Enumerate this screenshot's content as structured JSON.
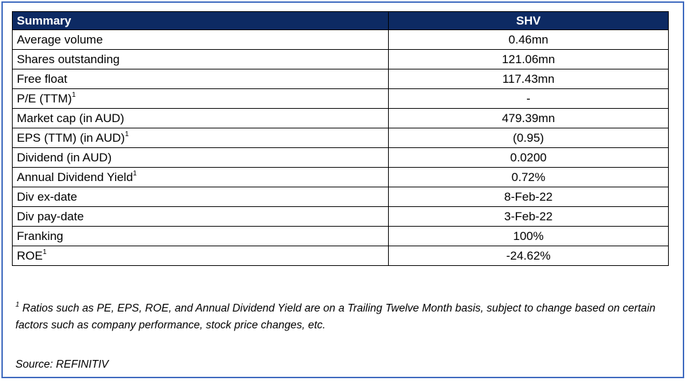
{
  "table": {
    "header": {
      "label": "Summary",
      "ticker": "SHV"
    },
    "rows": [
      {
        "label": "Average volume",
        "sup": "",
        "value": "0.46mn"
      },
      {
        "label": "Shares outstanding",
        "sup": "",
        "value": "121.06mn"
      },
      {
        "label": "Free float",
        "sup": "",
        "value": "117.43mn"
      },
      {
        "label": "P/E (TTM)",
        "sup": "1",
        "value": "-"
      },
      {
        "label": "Market cap (in AUD)",
        "sup": "",
        "value": "479.39mn"
      },
      {
        "label": "EPS (TTM) (in AUD)",
        "sup": "1",
        "value": "(0.95)"
      },
      {
        "label": "Dividend (in AUD)",
        "sup": "",
        "value": "0.0200"
      },
      {
        "label": "Annual Dividend Yield",
        "sup": "1",
        "value": "0.72%"
      },
      {
        "label": "Div ex-date",
        "sup": "",
        "value": "8-Feb-22"
      },
      {
        "label": "Div pay-date",
        "sup": "",
        "value": "3-Feb-22"
      },
      {
        "label": "Franking",
        "sup": "",
        "value": "100%"
      },
      {
        "label": "ROE",
        "sup": "1",
        "value": "-24.62%"
      }
    ]
  },
  "footnote": {
    "marker": "1",
    "text": " Ratios such as PE, EPS, ROE, and Annual Dividend Yield are on a Trailing Twelve Month basis, subject to change based on certain factors such as company performance, stock price changes, etc."
  },
  "source": "Source: REFINITIV",
  "colors": {
    "header_bg": "#0d2a63",
    "header_text": "#ffffff",
    "frame_border": "#3f6bbf"
  }
}
